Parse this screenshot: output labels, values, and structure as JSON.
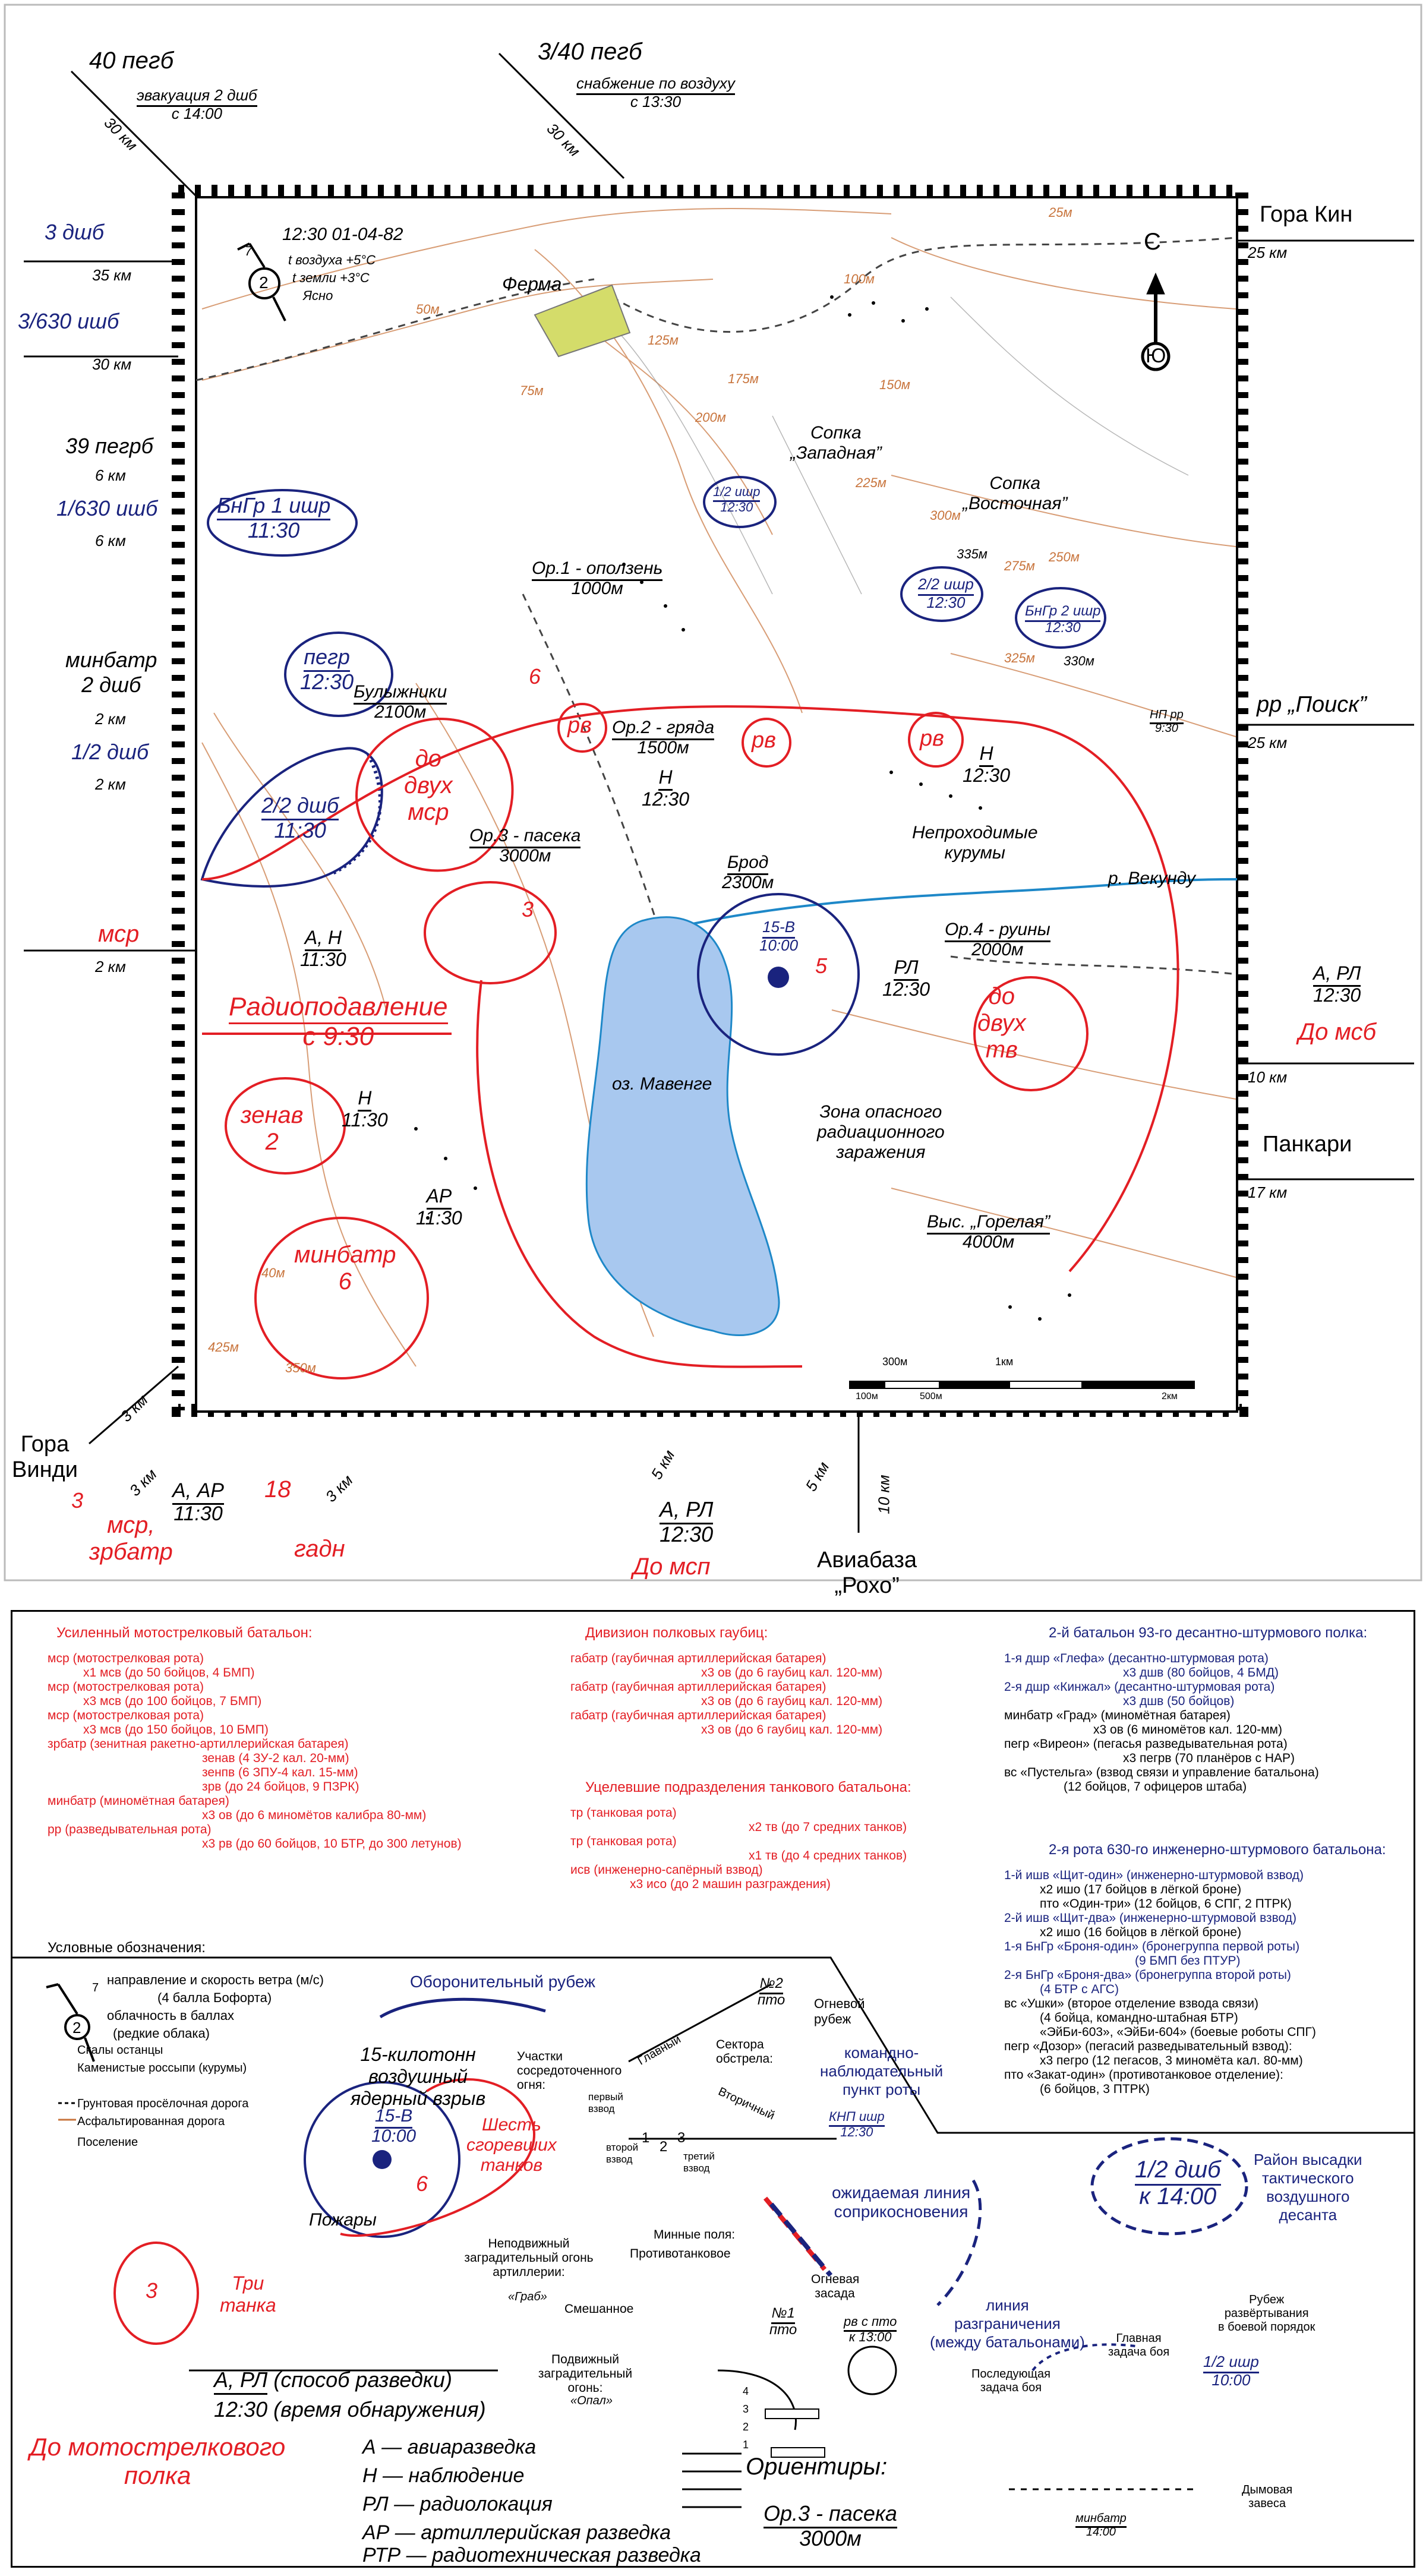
{
  "map": {
    "time_header": "12:30 01-04-82",
    "wind_value": "2",
    "wind_cloud": "7",
    "air_temp": "t воздуха +5°C",
    "ground_temp": "t земли +3°C",
    "sky": "Ясно",
    "north_label": "С",
    "south_label": "Ю"
  },
  "outside": {
    "left_top_unit": "40 пегб",
    "left_top_task": "эвакуация 2 дшб",
    "left_top_time": "с 14:00",
    "left_top_dist": "30 км",
    "top_mid_unit": "3/40 пегб",
    "top_mid_task": "снабжение по воздуху",
    "top_mid_time": "с 13:30",
    "top_mid_dist": "30 км",
    "l1_unit": "3 дшб",
    "l1_dist": "35 км",
    "l2_unit": "3/630 ишб",
    "l2_dist": "30 км",
    "l3_unit": "39 пегрб",
    "l3_dist": "6 км",
    "l4_unit": "1/630 ишб",
    "l4_dist": "6 км",
    "l5_unit1": "минбатр",
    "l5_unit2": "2 дшб",
    "l5_dist": "2 км",
    "l6_unit": "1/2 дшб",
    "l6_dist": "2 км",
    "l7_unit": "мср",
    "l7_dist": "2 км",
    "r1_name": "Гора Кин",
    "r1_dist": "25 км",
    "r2_name": "рр „Поиск”",
    "r2_dist": "25 км",
    "r3_detect": "А, РЛ",
    "r3_time": "12:30",
    "r3_name": "До мсб",
    "r3_dist": "10 км",
    "r4_name": "Панкари",
    "r4_dist": "17 км",
    "bl_name1": "Гора",
    "bl_name2": "Винди",
    "bl_dist": "3 км",
    "b1_num": "3",
    "b1_unit1": "мср,",
    "b1_unit2": "зрбатр",
    "b1_detect": "А, АР",
    "b1_time": "11:30",
    "b1_dist1": "3 км",
    "b1_dist2": "3 км",
    "b2_num": "18",
    "b2_unit": "гадн",
    "b3_detect": "А, РЛ",
    "b3_time": "12:30",
    "b3_name": "До мсп",
    "b3_dist1": "5 км",
    "b3_dist2": "5 км",
    "b4_name1": "Авиабаза",
    "b4_name2": "„Рохо”",
    "b4_dist": "10 км"
  },
  "features": {
    "farm": "Ферма",
    "hill_west1": "Сопка",
    "hill_west2": "„Западная”",
    "hill_east1": "Сопка",
    "hill_east2": "„Восточная”",
    "bulyzhniki": "Булыжники",
    "bulyzhniki_dist": "2100м",
    "op1": "Ор.1 - оползень",
    "op1_dist": "1000м",
    "op2": "Ор.2 - гряда",
    "op2_dist": "1500м",
    "op3": "Ор.3 - пасека",
    "op3_dist": "3000м",
    "op4": "Ор.4 - руины",
    "op4_dist": "2000м",
    "ford": "Брод",
    "ford_dist": "2300м",
    "river": "р. Векунду",
    "impassable1": "Непроходимые",
    "impassable2": "курумы",
    "lake": "оз. Мавенге",
    "zone1": "Зона опасного",
    "zone2": "радиационного",
    "zone3": "заражения",
    "hill_gor": "Выс. „Горелая”",
    "hill_gor_dist": "4000м",
    "np_rr": "НП рр",
    "np_time": "9:30",
    "scale_300": "300м",
    "scale_1km": "1км",
    "scale_0": "100м",
    "scale_500": "500м",
    "scale_2km": "2км"
  },
  "topo_labels": [
    "50м",
    "75м",
    "100м",
    "125м",
    "150м",
    "175м",
    "200м",
    "225м",
    "250м",
    "275м",
    "300м",
    "325м",
    "335м",
    "330м",
    "25м",
    "40м",
    "350м",
    "425м"
  ],
  "units_on_map": {
    "bngr1": "БнГр 1 ишр",
    "bngr1_time": "11:30",
    "pegr": "пегр",
    "pegr_time": "12:30",
    "ddshb": "2/2 дшб",
    "ddshb_time": "11:30",
    "half_ishr": "1/2 ишр",
    "half_ishr_time": "12:30",
    "two_ishr": "2/2 ишр",
    "two_ishr_time": "12:30",
    "bngr2": "БнГр 2 ишр",
    "bngr2_time": "12:30",
    "rv": "рв",
    "six": "6",
    "do_dvuh_msr1": "до",
    "do_dvuh_msr2": "двух",
    "do_dvuh_msr3": "мср",
    "msr3": "3",
    "nuke": "15-В",
    "nuke_time": "10:00",
    "tanks5": "5",
    "do_dvuh_tv1": "до",
    "do_dvuh_tv2": "двух",
    "do_dvuh_tv3": "тв",
    "zenav": "зенав",
    "zenav_num": "2",
    "minbatr": "минбатр",
    "minbatr_num": "6",
    "rp_title1": "Радиоподавление",
    "rp_title2": "с 9:30",
    "an_detect": "А, Н",
    "an_time": "11:30",
    "h_detect": "Н",
    "h_time": "12:30",
    "h2_detect": "Н",
    "h2_time": "11:30",
    "ar_detect": "АР",
    "ar_time": "11:30",
    "rl_detect": "РЛ",
    "rl_time": "12:30",
    "h3_detect": "Н",
    "h3_time": "12:30"
  },
  "legend": {
    "col1_title": "Усиленный мотострелковый батальон:",
    "col1_items": [
      "мср (мотострелковая рота)",
      "х1 мсв (до 50 бойцов, 4 БМП)",
      "мср (мотострелковая рота)",
      "х3 мсв (до 100 бойцов, 7 БМП)",
      "мср (мотострелковая рота)",
      "х3 мсв (до 150 бойцов, 10 БМП)",
      "зрбатр (зенитная ракетно-артиллерийская батарея)",
      "зенав (4 ЗУ-2 кал. 20-мм)",
      "зенпв (6 ЗПУ-4 кал. 15-мм)",
      "зрв (до 24 бойцов, 9 ПЗРК)",
      "минбатр (миномётная батарея)",
      "х3 ов (до 6 миномётов калибра 80-мм)",
      "рр (разведывательная рота)",
      "х3 рв (до 60 бойцов, 10 БТР, до 300 летунов)"
    ],
    "col2_title": "Дивизион полковых гаубиц:",
    "col2_items": [
      "габатр (гаубичная артиллерийская батарея)",
      "х3 ов (до 6 гаубиц кал. 120-мм)",
      "габатр (гаубичная артиллерийская батарея)",
      "х3 ов (до 6 гаубиц кал. 120-мм)",
      "габатр (гаубичная артиллерийская батарея)",
      "х3 ов (до 6 гаубиц кал. 120-мм)"
    ],
    "col2b_title": "Уцелевшие подразделения танкового батальона:",
    "col2b_items": [
      "тр (танковая рота)",
      "х2 тв (до 7 средних танков)",
      "тр (танковая рота)",
      "х1 тв (до 4 средних танков)",
      "исв (инженерно-сапёрный взвод)",
      "х3 исо (до 2 машин разграждения)"
    ],
    "col3_title": "2-й батальон 93-го десантно-штурмового полка:",
    "col3_items": [
      "1-я дшр «Глефа» (десантно-штурмовая рота)",
      "х3 дшв (80 бойцов, 4 БМД)",
      "2-я дшр «Кинжал» (десантно-штурмовая рота)",
      "х3 дшв (50 бойцов)",
      "минбатр «Град» (миномётная батарея)",
      "х3 ов (6 миномётов кал. 120-мм)",
      "пегр «Вирeон» (пегасья разведывательная рота)",
      "х3 пегрв (70 планёров с НАР)",
      "вс «Пустельга» (взвод связи и управление батальона)",
      "(12 бойцов, 7 офицеров штаба)"
    ],
    "col3b_title": "2-я рота 630-го инженерно-штурмового батальона:",
    "col3b_items": [
      "1-й ишв «Щит-один» (инженерно-штурмовой взвод)",
      "х2 ишо (17 бойцов в лёгкой броне)",
      "пто «Один-три» (12 бойцов, 6 СПГ, 2 ПТРК)",
      "2-й ишв «Щит-два» (инженерно-штурмовой взвод)",
      "х2 ишо (16 бойцов в лёгкой броне)",
      "1-я БнГр «Броня-один» (бронегруппа первой роты)",
      "(9 БМП без ПТУР)",
      "2-я БнГр «Броня-два» (бронегруппа второй роты)",
      "(4 БТР с АГС)",
      "вс «Ушки» (второе отделение взвода связи)",
      "(4 бойца, командно-штабная БТР)",
      "«ЭйБи-603», «ЭйБи-604» (боевые роботы СПГ)",
      "пегр «Дозор» (пегасий разведывательный взвод):",
      "х3 пегро (12 пегасов, 3 миномёта кал. 80-мм)",
      "пто «Закат-один» (противотанковое отделение):",
      "(6 бойцов, 3 ПТРК)"
    ],
    "symbols_title": "Условные обозначения:",
    "wind_line1": "направление и скорость ветра (м/с)",
    "wind_line2": "(4 балла Бофорта)",
    "wind_line3": "облачность в баллах",
    "wind_line4": "(редкие облака)",
    "wind_num": "2",
    "wind_cloud": "7",
    "sym_rocks": "Скалы останцы",
    "sym_stones": "Каменистые россыпи (курумы)",
    "sym_dirt": "Грунтовая просёлочная дорога",
    "sym_asphalt": "Асфальтированная дорога",
    "sym_village": "Поселение",
    "def_line": "Оборонительный рубеж",
    "nuke1": "15-килотонн",
    "nuke2": "воздушный",
    "nuke3": "ядерный взрыв",
    "nuke_id": "15-В",
    "nuke_time": "10:00",
    "six_num": "6",
    "six_text1": "Шесть",
    "six_text2": "сгоревших",
    "six_text3": "танков",
    "fires": "Пожары",
    "art_fire": "Участки сосредоточенного огня:",
    "sectors": "Сектора обстрела:",
    "main_sector": "Главный",
    "secondary": "Вторичный",
    "first_platoon": "первый взвод",
    "second_platoon": "второй взвод",
    "third_platoon": "третий взвод",
    "p1": "1",
    "p2": "2",
    "p3": "3",
    "fire_line": "Огневой рубеж",
    "no2": "№2",
    "no2_sub": "пто",
    "kmp1": "командно-",
    "kmp2": "наблюдательный",
    "kmp3": "пункт роты",
    "kmp_id": "КНП ишр",
    "kmp_time": "12:30",
    "contact1": "ожидаемая линия",
    "contact2": "соприкосновения",
    "barrier": "Неподвижный заградительный огонь артиллерии:",
    "barrier_name": "«Граб»",
    "mines": "Минные поля:",
    "antitank": "Противотанковое",
    "mixed": "Смешанное",
    "ambush": "Огневая засада",
    "no1": "№1",
    "no1_sub": "пто",
    "rv_pto": "рв с пто",
    "rv_time": "к 13:00",
    "moving_barrier": "Подвижный заградительный огонь:",
    "moving_name": "«Опал»",
    "m4": "4",
    "m3": "3",
    "m2": "2",
    "m1": "1",
    "tri_tanka_num": "3",
    "tri_tanka1": "Три",
    "tri_tanka2": "танка",
    "ex_detect": "А, РЛ",
    "ex_detect_note": "(способ разведки)",
    "ex_time": "12:30",
    "ex_time_note": "(время обнаружения)",
    "do_msp1": "До мотострелкового",
    "do_msp2": "полка",
    "abbr_a": "А — авиаразведка",
    "abbr_h": "Н — наблюдение",
    "abbr_rl": "РЛ — радиолокация",
    "abbr_ar": "АР — артиллерийская разведка",
    "abbr_rtr": "РТР — радиотехническая разведка",
    "orientiry": "Ориентиры:",
    "or_name": "Ор.3 - пасека",
    "or_dist": "3000м",
    "landing_unit": "1/2 дшб",
    "landing_time": "к 14:00",
    "landing1": "Район высадки",
    "landing2": "тактического",
    "landing3": "воздушного",
    "landing4": "десанта",
    "boundary1": "линия",
    "boundary2": "разграничения",
    "boundary3": "(между батальонами)",
    "deploy1": "Рубеж",
    "deploy2": "развёртывания",
    "deploy3": "в боевой порядок",
    "main_task1": "Главная",
    "main_task2": "задача боя",
    "last_task1": "Последующая",
    "last_task2": "задача боя",
    "ishr_unit": "1/2 ишр",
    "ishr_time": "10:00",
    "smoke1": "Дымовая",
    "smoke2": "завеса",
    "minbatr_unit": "минбатр",
    "minbatr_time": "14:00"
  },
  "colors": {
    "blue": "#1a237e",
    "red": "#e31e24",
    "lake": "#a8c8ef",
    "topo": "#c8743c",
    "village": "#d4dc6a"
  }
}
